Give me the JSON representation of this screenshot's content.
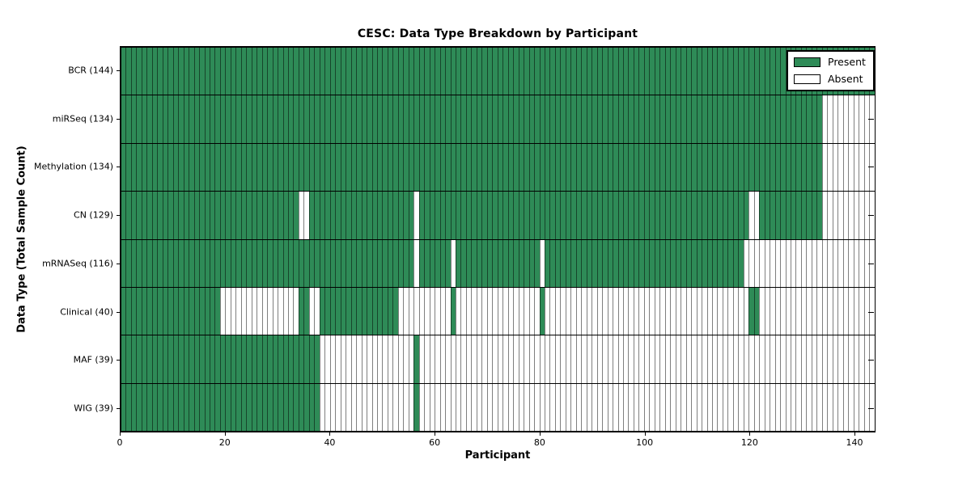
{
  "chart_data": {
    "type": "heatmap",
    "title": "CESC: Data Type Breakdown by Participant",
    "xlabel": "Participant",
    "ylabel": "Data Type (Total Sample Count)",
    "n_participants": 144,
    "xlim": [
      0,
      144
    ],
    "x_ticks": [
      0,
      20,
      40,
      60,
      80,
      100,
      120,
      140
    ],
    "grid": "cell-edges",
    "colors": {
      "present": "#2e8b57",
      "absent": "#ffffff",
      "cell_edge": "rgba(0,0,0,0.5)",
      "row_edge": "#000000",
      "frame": "#000000"
    },
    "legend": {
      "position": "top-right",
      "entries": [
        {
          "label": "Present",
          "color": "#2e8b57"
        },
        {
          "label": "Absent",
          "color": "#ffffff"
        }
      ]
    },
    "rows": [
      {
        "label": "BCR (144)",
        "data_type": "BCR",
        "total": 144,
        "present_ranges": [
          [
            0,
            143
          ]
        ]
      },
      {
        "label": "miRSeq (134)",
        "data_type": "miRSeq",
        "total": 134,
        "present_ranges": [
          [
            0,
            133
          ]
        ]
      },
      {
        "label": "Methylation (134)",
        "data_type": "Methylation",
        "total": 134,
        "present_ranges": [
          [
            0,
            133
          ]
        ]
      },
      {
        "label": "CN (129)",
        "data_type": "CN",
        "total": 129,
        "present_ranges": [
          [
            0,
            33
          ],
          [
            36,
            55
          ],
          [
            57,
            119
          ],
          [
            122,
            133
          ]
        ]
      },
      {
        "label": "mRNASeq (116)",
        "data_type": "mRNASeq",
        "total": 116,
        "present_ranges": [
          [
            0,
            55
          ],
          [
            57,
            62
          ],
          [
            64,
            79
          ],
          [
            81,
            118
          ]
        ]
      },
      {
        "label": "Clinical (40)",
        "data_type": "Clinical",
        "total": 40,
        "present_ranges": [
          [
            0,
            18
          ],
          [
            34,
            35
          ],
          [
            38,
            52
          ],
          [
            63,
            63
          ],
          [
            80,
            80
          ],
          [
            120,
            121
          ]
        ]
      },
      {
        "label": "MAF (39)",
        "data_type": "MAF",
        "total": 39,
        "present_ranges": [
          [
            0,
            37
          ],
          [
            56,
            56
          ]
        ]
      },
      {
        "label": "WIG (39)",
        "data_type": "WIG",
        "total": 39,
        "present_ranges": [
          [
            0,
            37
          ],
          [
            56,
            56
          ]
        ]
      }
    ]
  }
}
